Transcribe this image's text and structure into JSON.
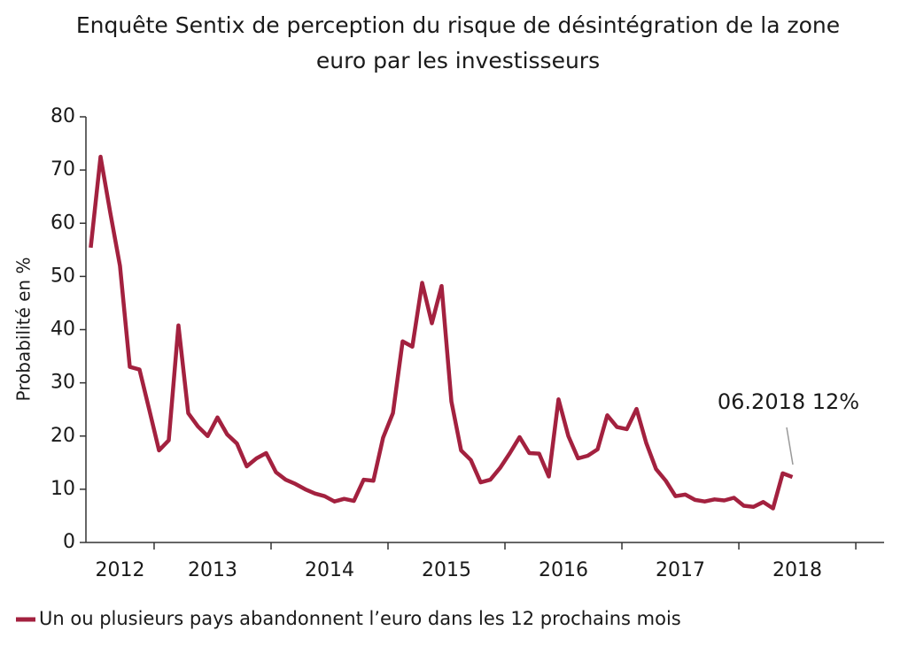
{
  "chart_data": {
    "type": "line",
    "title_lines": [
      "Enquête Sentix de perception du risque de désintégration de la zone",
      "euro par les investisseurs"
    ],
    "ylabel": "Probabilité en %",
    "x": [
      2012.458,
      2012.542,
      2012.625,
      2012.708,
      2012.792,
      2012.875,
      2012.958,
      2013.042,
      2013.125,
      2013.208,
      2013.292,
      2013.375,
      2013.458,
      2013.542,
      2013.625,
      2013.708,
      2013.792,
      2013.875,
      2013.958,
      2014.042,
      2014.125,
      2014.208,
      2014.292,
      2014.375,
      2014.458,
      2014.542,
      2014.625,
      2014.708,
      2014.792,
      2014.875,
      2014.958,
      2015.042,
      2015.125,
      2015.208,
      2015.292,
      2015.375,
      2015.458,
      2015.542,
      2015.625,
      2015.708,
      2015.792,
      2015.875,
      2015.958,
      2016.042,
      2016.125,
      2016.208,
      2016.292,
      2016.375,
      2016.458,
      2016.542,
      2016.625,
      2016.708,
      2016.792,
      2016.875,
      2016.958,
      2017.042,
      2017.125,
      2017.208,
      2017.292,
      2017.375,
      2017.458,
      2017.542,
      2017.625,
      2017.708,
      2017.792,
      2017.875,
      2017.958,
      2018.042,
      2018.125,
      2018.208,
      2018.292,
      2018.375,
      2018.458
    ],
    "series": [
      {
        "name": "Un ou plusieurs pays abandonnent l’euro dans les 12 prochains mois",
        "color": "#a3213f",
        "values": [
          55.4,
          72.5,
          62,
          52,
          33,
          32.5,
          25,
          17.3,
          19.2,
          40.8,
          24.3,
          21.8,
          20,
          23.5,
          20.3,
          18.6,
          14.3,
          15.8,
          16.8,
          13.2,
          11.8,
          11,
          10,
          9.2,
          8.7,
          7.7,
          8.2,
          7.8,
          11.8,
          11.6,
          19.7,
          24.3,
          37.8,
          36.8,
          48.8,
          41.2,
          48.2,
          26.5,
          17.3,
          15.5,
          11.3,
          11.8,
          14,
          16.8,
          19.8,
          16.8,
          16.7,
          12.4,
          26.9,
          20,
          15.8,
          16.3,
          17.5,
          23.9,
          21.7,
          21.3,
          25.1,
          18.7,
          13.8,
          11.6,
          8.7,
          9,
          8,
          7.7,
          8.1,
          7.9,
          8.4,
          6.9,
          6.7,
          7.6,
          6.4,
          13,
          12.3
        ]
      }
    ],
    "xlim": [
      2012.417,
      2019.242
    ],
    "xticks": [
      2013,
      2014,
      2015,
      2016,
      2017,
      2018,
      2019
    ],
    "year_labels": [
      "2012",
      "2013",
      "2014",
      "2015",
      "2016",
      "2017",
      "2018"
    ],
    "ylim": [
      0,
      80
    ],
    "yticks": [
      0,
      10,
      20,
      30,
      40,
      50,
      60,
      70,
      80
    ],
    "annotation": "06.2018 12%",
    "legend": "bottom-left"
  }
}
